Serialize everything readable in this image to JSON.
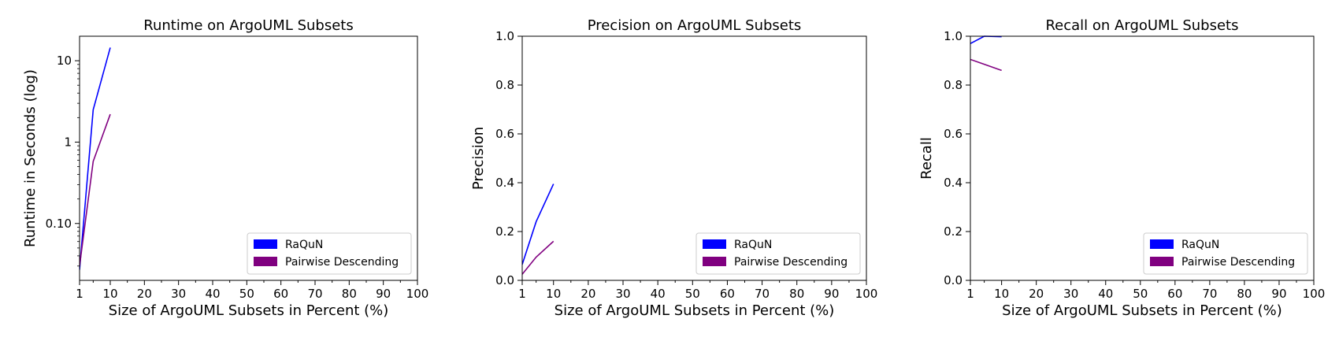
{
  "chart_data": [
    {
      "type": "line",
      "title": "Runtime on ArgoUML Subsets",
      "xlabel": "Size of ArgoUML Subsets in Percent (%)",
      "ylabel": "Runtime in Seconds (log)",
      "xlim": [
        1,
        100
      ],
      "ylim": [
        0.02,
        20
      ],
      "yscale": "log",
      "xticks": [
        1,
        10,
        20,
        30,
        40,
        50,
        60,
        70,
        80,
        90,
        100
      ],
      "xtick_labels": [
        "1",
        "10",
        "20",
        "30",
        "40",
        "50",
        "60",
        "70",
        "80",
        "90",
        "100"
      ],
      "yticks": [
        0.1,
        1,
        10
      ],
      "ytick_labels": [
        "0.10",
        "1",
        "10"
      ],
      "grid": false,
      "legend": "lower-right",
      "series": [
        {
          "name": "RaQuN",
          "color": "#0000ff",
          "x": [
            1,
            5,
            10
          ],
          "y": [
            0.027,
            2.5,
            14.5
          ]
        },
        {
          "name": "Pairwise Descending",
          "color": "#800080",
          "x": [
            1,
            5,
            10
          ],
          "y": [
            0.03,
            0.58,
            2.2
          ]
        }
      ]
    },
    {
      "type": "line",
      "title": "Precision on ArgoUML Subsets",
      "xlabel": "Size of ArgoUML Subsets in Percent (%)",
      "ylabel": "Precision",
      "xlim": [
        1,
        100
      ],
      "ylim": [
        0,
        1
      ],
      "yscale": "linear",
      "xticks": [
        1,
        10,
        20,
        30,
        40,
        50,
        60,
        70,
        80,
        90,
        100
      ],
      "xtick_labels": [
        "1",
        "10",
        "20",
        "30",
        "40",
        "50",
        "60",
        "70",
        "80",
        "90",
        "100"
      ],
      "yticks": [
        0,
        0.2,
        0.4,
        0.6,
        0.8,
        1
      ],
      "ytick_labels": [
        "0.0",
        "0.2",
        "0.4",
        "0.6",
        "0.8",
        "1.0"
      ],
      "grid": false,
      "legend": "lower-right",
      "series": [
        {
          "name": "RaQuN",
          "color": "#0000ff",
          "x": [
            1,
            5,
            10
          ],
          "y": [
            0.065,
            0.24,
            0.395
          ]
        },
        {
          "name": "Pairwise Descending",
          "color": "#800080",
          "x": [
            1,
            5,
            10
          ],
          "y": [
            0.025,
            0.095,
            0.16
          ]
        }
      ]
    },
    {
      "type": "line",
      "title": "Recall on ArgoUML Subsets",
      "xlabel": "Size of ArgoUML Subsets in Percent (%)",
      "ylabel": "Recall",
      "xlim": [
        1,
        100
      ],
      "ylim": [
        0,
        1
      ],
      "yscale": "linear",
      "xticks": [
        1,
        10,
        20,
        30,
        40,
        50,
        60,
        70,
        80,
        90,
        100
      ],
      "xtick_labels": [
        "1",
        "10",
        "20",
        "30",
        "40",
        "50",
        "60",
        "70",
        "80",
        "90",
        "100"
      ],
      "yticks": [
        0,
        0.2,
        0.4,
        0.6,
        0.8,
        1
      ],
      "ytick_labels": [
        "0.0",
        "0.2",
        "0.4",
        "0.6",
        "0.8",
        "1.0"
      ],
      "grid": false,
      "legend": "lower-right",
      "series": [
        {
          "name": "RaQuN",
          "color": "#0000ff",
          "x": [
            1,
            5,
            10
          ],
          "y": [
            0.97,
            1.0,
            0.998
          ]
        },
        {
          "name": "Pairwise Descending",
          "color": "#800080",
          "x": [
            1,
            5,
            10
          ],
          "y": [
            0.905,
            0.885,
            0.86
          ]
        }
      ]
    }
  ]
}
